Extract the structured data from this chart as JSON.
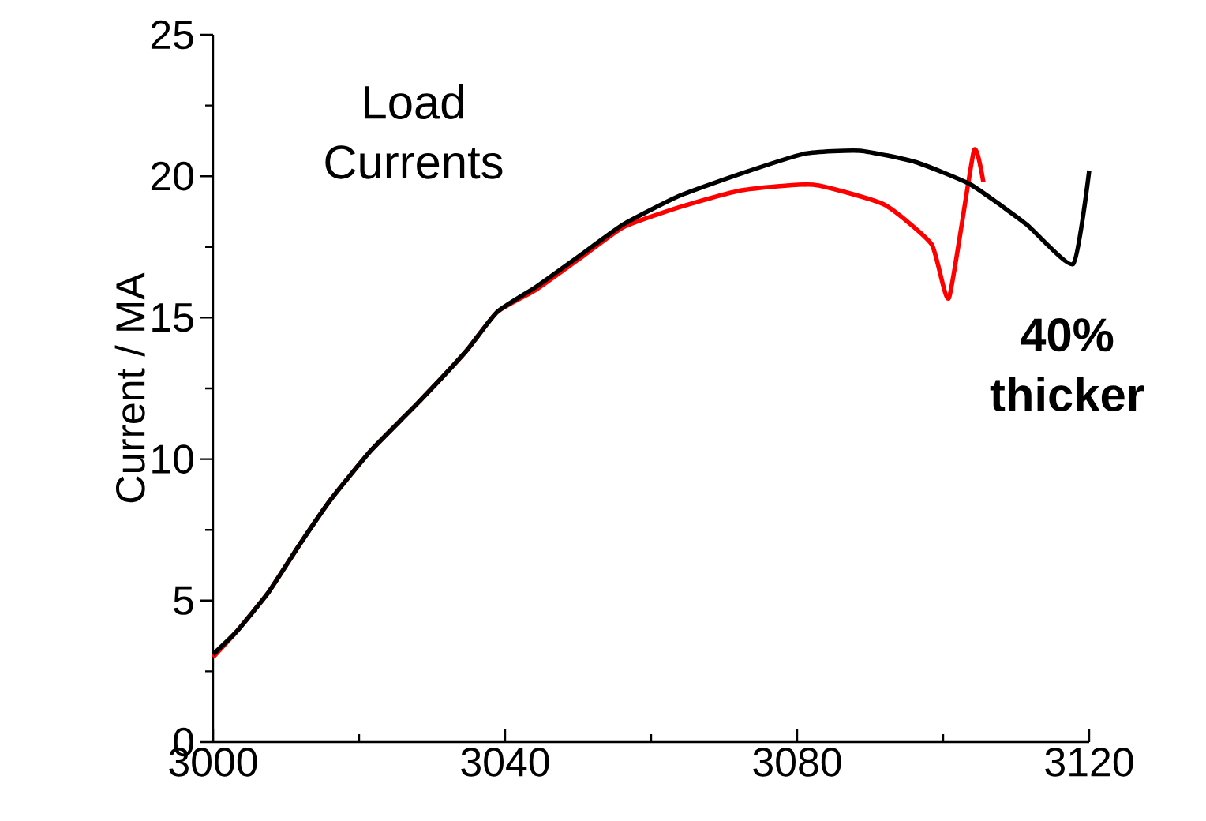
{
  "chart_data": {
    "type": "line",
    "ylabel": "Current / MA",
    "xlim": [
      3000,
      3120
    ],
    "ylim": [
      0,
      25
    ],
    "xticks": [
      3000,
      3040,
      3080,
      3120
    ],
    "yticks": [
      0,
      5,
      10,
      15,
      20,
      25
    ],
    "annotations": [
      "Load Currents",
      "**40% thicker**"
    ],
    "series": [
      {
        "color": "#ff0000",
        "x": [
          3000,
          3003.2,
          3007.6,
          3011.9,
          3016.2,
          3021.6,
          3028.1,
          3034.6,
          3038.9,
          3044.3,
          3050.8,
          3056.2,
          3063.8,
          3072.4,
          3082.2,
          3091.9,
          3098.4,
          3100.8,
          3104.2,
          3105.5
        ],
        "values": [
          3.0,
          3.9,
          5.3,
          7.0,
          8.6,
          10.3,
          12.0,
          13.8,
          15.2,
          16.0,
          17.2,
          18.2,
          18.9,
          19.5,
          19.7,
          19.0,
          17.6,
          15.7,
          20.9,
          19.8
        ]
      },
      {
        "color": "#000000",
        "x": [
          3000,
          3003.2,
          3007.6,
          3011.9,
          3016.2,
          3021.6,
          3028.1,
          3034.6,
          3038.9,
          3044.3,
          3050.8,
          3056.2,
          3063.8,
          3072.4,
          3081.1,
          3088.6,
          3096.2,
          3103.8,
          3111.4,
          3117.8,
          3120
        ],
        "values": [
          3.1,
          3.9,
          5.3,
          7.0,
          8.6,
          10.3,
          12.0,
          13.8,
          15.2,
          16.1,
          17.3,
          18.3,
          19.3,
          20.1,
          20.8,
          20.9,
          20.5,
          19.7,
          18.3,
          16.9,
          20.2
        ]
      }
    ]
  }
}
